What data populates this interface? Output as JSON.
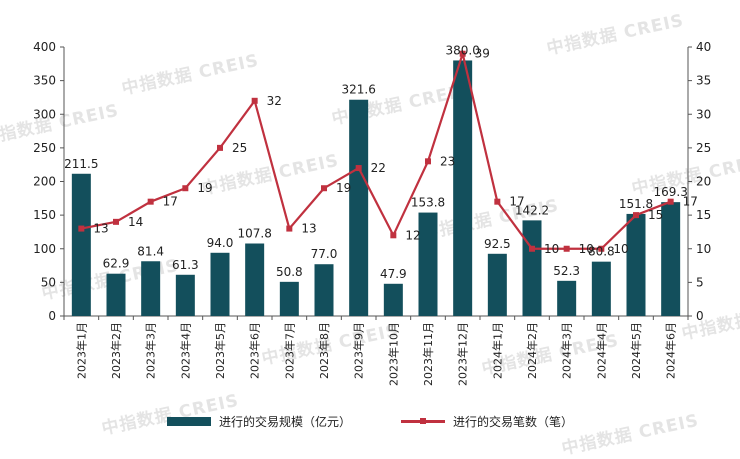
{
  "watermark_text": "中指数据 CREIS",
  "colors": {
    "bar": "#134f5c",
    "line": "#c0313f",
    "axis": "#555555"
  },
  "chart_data": {
    "type": "bar",
    "categories": [
      "2023年1月",
      "2023年2月",
      "2023年3月",
      "2023年4月",
      "2023年5月",
      "2023年6月",
      "2023年7月",
      "2023年8月",
      "2023年9月",
      "2023年10月",
      "2023年11月",
      "2023年12月",
      "2024年1月",
      "2024年2月",
      "2024年3月",
      "2024年4月",
      "2024年5月",
      "2024年6月"
    ],
    "series": [
      {
        "name": "进行的交易规模（亿元）",
        "type": "bar",
        "axis": "left",
        "values": [
          211.5,
          62.9,
          81.4,
          61.3,
          94.0,
          107.8,
          50.8,
          77.0,
          321.6,
          47.9,
          153.8,
          380.0,
          92.5,
          142.2,
          52.3,
          80.8,
          151.8,
          169.3
        ],
        "labels": [
          "211.5",
          "62.9",
          "81.4",
          "61.3",
          "94.0",
          "107.8",
          "50.8",
          "77.0",
          "321.6",
          "47.9",
          "153.8",
          "380.0",
          "92.5",
          "142.2",
          "52.3",
          "80.8",
          "151.8",
          "169.3"
        ]
      },
      {
        "name": "进行的交易笔数（笔）",
        "type": "line",
        "axis": "right",
        "values": [
          13,
          14,
          17,
          19,
          25,
          32,
          13,
          19,
          22,
          12,
          23,
          39,
          17,
          10,
          10,
          10,
          15,
          17
        ],
        "labels": [
          "13",
          "14",
          "17",
          "19",
          "25",
          "32",
          "13",
          "19",
          "22",
          "12",
          "23",
          "39",
          "17",
          "10",
          "10",
          "10",
          "15",
          "17"
        ]
      }
    ],
    "y_left": {
      "min": 0,
      "max": 400,
      "ticks": [
        "0",
        "50",
        "100",
        "150",
        "200",
        "250",
        "300",
        "350",
        "400"
      ]
    },
    "y_right": {
      "min": 0,
      "max": 40,
      "ticks": [
        "0",
        "5",
        "10",
        "15",
        "20",
        "25",
        "30",
        "35",
        "40"
      ]
    },
    "grid": false,
    "legend_position": "bottom"
  }
}
